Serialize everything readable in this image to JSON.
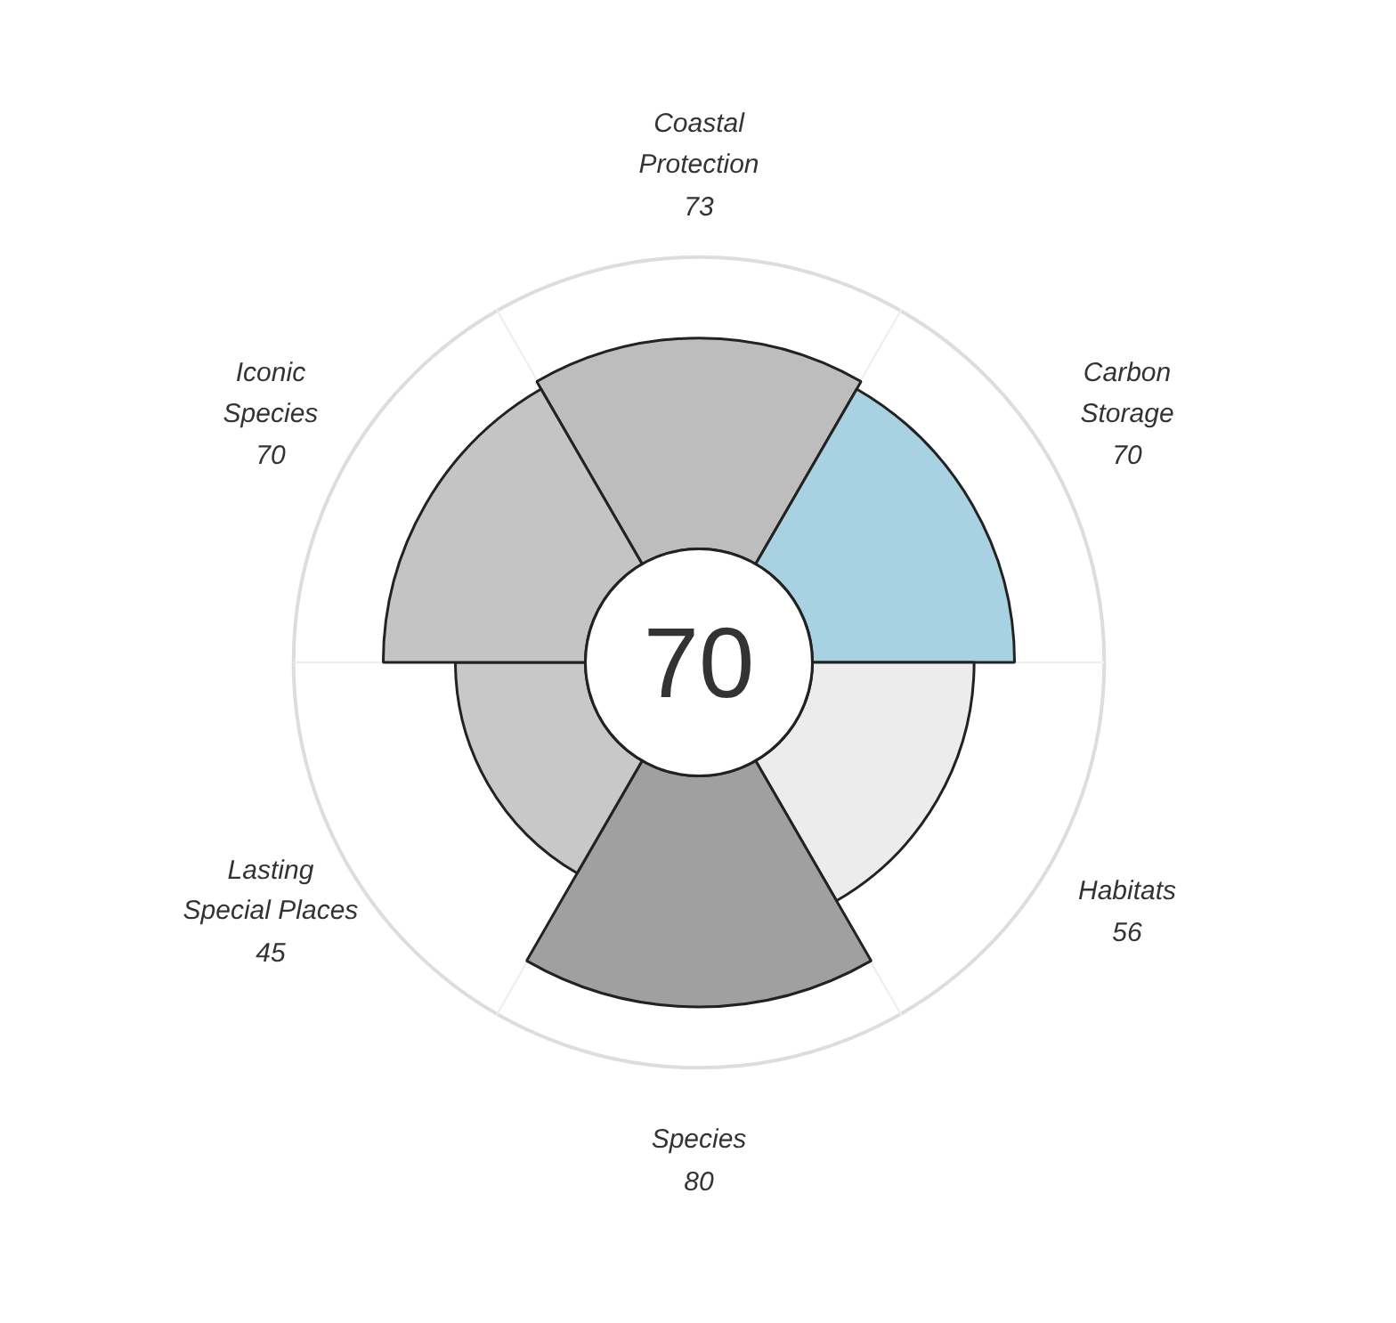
{
  "chart_data": {
    "type": "other",
    "categories": [
      "Coastal Protection",
      "Carbon Storage",
      "Habitats",
      "Species",
      "Lasting Special Places",
      "Iconic Species"
    ],
    "values": [
      73,
      70,
      56,
      80,
      45,
      70
    ],
    "colors": [
      "#bdbdbd",
      "#a8d1e2",
      "#ececec",
      "#a0a0a0",
      "#c8c8c8",
      "#c4c4c4"
    ],
    "data_labels": true,
    "annotations": [
      "70"
    ]
  }
}
